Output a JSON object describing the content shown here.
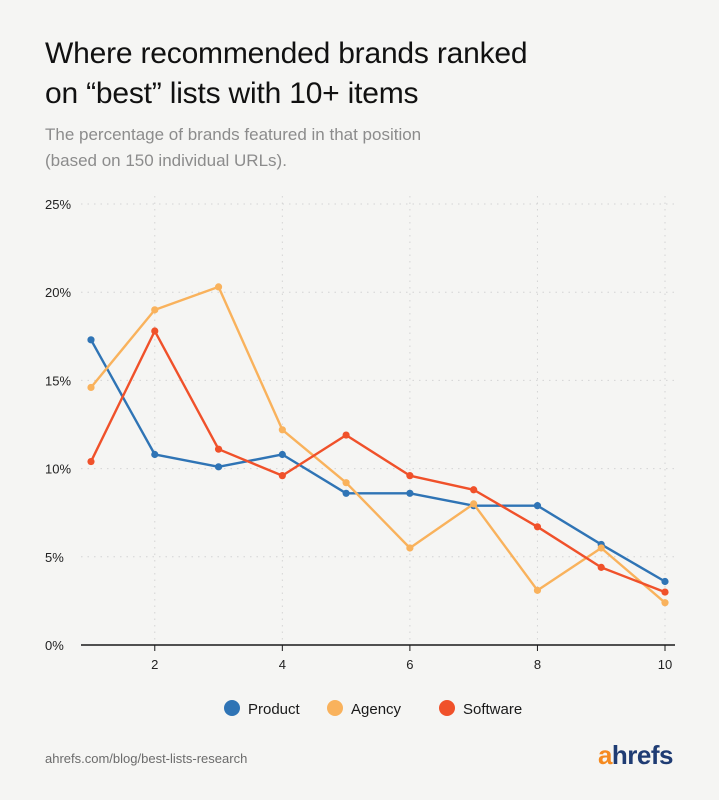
{
  "header": {
    "title_line1": "Where recommended brands ranked",
    "title_line2": "on “best” lists with 10+ items",
    "subtitle_line1": "The percentage of brands featured in that position",
    "subtitle_line2": "(based on 150 individual URLs)."
  },
  "footer": {
    "source": "ahrefs.com/blog/best-lists-research",
    "logo_a": "a",
    "logo_rest": "hrefs"
  },
  "colors": {
    "Product": "#2f74b5",
    "Agency": "#f9b25c",
    "Software": "#f0512a",
    "grid": "#d4d4d4",
    "axis": "#1a1a1a"
  },
  "chart_data": {
    "type": "line",
    "title": "Where recommended brands ranked on “best” lists with 10+ items",
    "subtitle": "The percentage of brands featured in that position (based on 150 individual URLs).",
    "x": [
      1,
      2,
      3,
      4,
      5,
      6,
      7,
      8,
      9,
      10
    ],
    "xticks": [
      2,
      4,
      6,
      8,
      10
    ],
    "xlim": [
      1,
      10
    ],
    "ylim": [
      0,
      25
    ],
    "yticks": [
      0,
      5,
      10,
      15,
      20,
      25
    ],
    "ytick_labels": [
      "0%",
      "5%",
      "10%",
      "15%",
      "20%",
      "25%"
    ],
    "grid": true,
    "legend_position": "bottom",
    "series": [
      {
        "name": "Product",
        "values": [
          17.3,
          10.8,
          10.1,
          10.8,
          8.6,
          8.6,
          7.9,
          7.9,
          5.7,
          3.6
        ]
      },
      {
        "name": "Agency",
        "values": [
          14.6,
          19.0,
          20.3,
          12.2,
          9.2,
          5.5,
          8.0,
          3.1,
          5.5,
          2.4
        ]
      },
      {
        "name": "Software",
        "values": [
          10.4,
          17.8,
          11.1,
          9.6,
          11.9,
          9.6,
          8.8,
          6.7,
          4.4,
          3.0
        ]
      }
    ]
  }
}
